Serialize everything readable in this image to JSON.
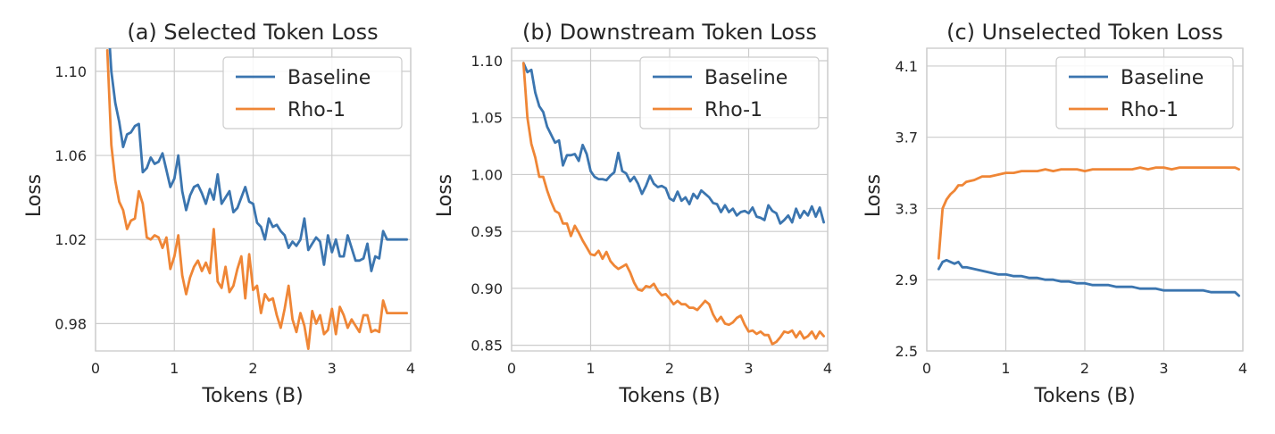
{
  "colors": {
    "baseline": "#3b75af",
    "rho1": "#ef8636"
  },
  "chart_data": [
    {
      "type": "line",
      "title": "(a) Selected Token Loss",
      "xlabel": "Tokens (B)",
      "ylabel": "Loss",
      "xlim": [
        0,
        4
      ],
      "ylim": [
        0.967,
        1.111
      ],
      "xticks": [
        0,
        1,
        2,
        3,
        4
      ],
      "xtick_labels": [
        "0",
        "1",
        "2",
        "3",
        "4"
      ],
      "yticks": [
        0.98,
        1.02,
        1.06,
        1.1
      ],
      "ytick_labels": [
        "0.98",
        "1.02",
        "1.06",
        "1.10"
      ],
      "grid": true,
      "legend": "top-right",
      "x": [
        0.15,
        0.2,
        0.25,
        0.3,
        0.35,
        0.4,
        0.45,
        0.5,
        0.55,
        0.6,
        0.65,
        0.7,
        0.75,
        0.8,
        0.85,
        0.9,
        0.95,
        1.0,
        1.05,
        1.1,
        1.15,
        1.2,
        1.25,
        1.3,
        1.35,
        1.4,
        1.45,
        1.5,
        1.55,
        1.6,
        1.65,
        1.7,
        1.75,
        1.8,
        1.85,
        1.9,
        1.95,
        2.0,
        2.05,
        2.1,
        2.15,
        2.2,
        2.25,
        2.3,
        2.35,
        2.4,
        2.45,
        2.5,
        2.55,
        2.6,
        2.65,
        2.7,
        2.75,
        2.8,
        2.85,
        2.9,
        2.95,
        3.0,
        3.05,
        3.1,
        3.15,
        3.2,
        3.25,
        3.3,
        3.35,
        3.4,
        3.45,
        3.5,
        3.55,
        3.6,
        3.65,
        3.7,
        3.75,
        3.8,
        3.85,
        3.9,
        3.95
      ],
      "series": [
        {
          "name": "Baseline",
          "values": [
            1.13,
            1.1,
            1.085,
            1.076,
            1.064,
            1.07,
            1.071,
            1.074,
            1.075,
            1.052,
            1.054,
            1.059,
            1.056,
            1.057,
            1.061,
            1.053,
            1.045,
            1.049,
            1.06,
            1.043,
            1.034,
            1.041,
            1.045,
            1.046,
            1.042,
            1.037,
            1.044,
            1.039,
            1.051,
            1.037,
            1.04,
            1.043,
            1.033,
            1.035,
            1.04,
            1.045,
            1.038,
            1.037,
            1.028,
            1.026,
            1.02,
            1.03,
            1.026,
            1.027,
            1.024,
            1.022,
            1.016,
            1.019,
            1.017,
            1.02,
            1.03,
            1.015,
            1.018,
            1.021,
            1.019,
            1.008,
            1.022,
            1.014,
            1.02,
            1.012,
            1.012,
            1.022,
            1.016,
            1.01,
            1.01,
            1.011,
            1.018,
            1.005,
            1.012,
            1.011,
            1.024,
            1.02,
            1.02,
            1.02,
            1.02,
            1.02,
            1.02
          ]
        },
        {
          "name": "Rho-1",
          "values": [
            1.11,
            1.065,
            1.048,
            1.038,
            1.034,
            1.025,
            1.029,
            1.03,
            1.043,
            1.037,
            1.021,
            1.02,
            1.022,
            1.021,
            1.016,
            1.021,
            1.006,
            1.012,
            1.022,
            1.003,
            0.994,
            1.002,
            1.007,
            1.01,
            1.005,
            1.009,
            1.004,
            1.025,
            1.0,
            0.997,
            1.007,
            0.995,
            0.998,
            1.006,
            1.012,
            0.992,
            1.013,
            0.996,
            0.998,
            0.985,
            0.994,
            0.991,
            0.992,
            0.984,
            0.978,
            0.987,
            0.998,
            0.982,
            0.976,
            0.985,
            0.979,
            0.968,
            0.986,
            0.98,
            0.984,
            0.975,
            0.977,
            0.987,
            0.975,
            0.988,
            0.984,
            0.978,
            0.982,
            0.979,
            0.976,
            0.984,
            0.984,
            0.976,
            0.977,
            0.976,
            0.991,
            0.985,
            0.985,
            0.985,
            0.985,
            0.985,
            0.985
          ]
        }
      ]
    },
    {
      "type": "line",
      "title": "(b) Downstream Token Loss",
      "xlabel": "Tokens (B)",
      "ylabel": "Loss",
      "xlim": [
        0,
        4
      ],
      "ylim": [
        0.845,
        1.111
      ],
      "xticks": [
        0,
        1,
        2,
        3,
        4
      ],
      "xtick_labels": [
        "0",
        "1",
        "2",
        "3",
        "4"
      ],
      "yticks": [
        0.85,
        0.9,
        0.95,
        1.0,
        1.05,
        1.1
      ],
      "ytick_labels": [
        "0.85",
        "0.90",
        "0.95",
        "1.00",
        "1.05",
        "1.10"
      ],
      "grid": true,
      "legend": "top-right",
      "x": [
        0.15,
        0.2,
        0.25,
        0.3,
        0.35,
        0.4,
        0.45,
        0.5,
        0.55,
        0.6,
        0.65,
        0.7,
        0.75,
        0.8,
        0.85,
        0.9,
        0.95,
        1.0,
        1.05,
        1.1,
        1.15,
        1.2,
        1.25,
        1.3,
        1.35,
        1.4,
        1.45,
        1.5,
        1.55,
        1.6,
        1.65,
        1.7,
        1.75,
        1.8,
        1.85,
        1.9,
        1.95,
        2.0,
        2.05,
        2.1,
        2.15,
        2.2,
        2.25,
        2.3,
        2.35,
        2.4,
        2.45,
        2.5,
        2.55,
        2.6,
        2.65,
        2.7,
        2.75,
        2.8,
        2.85,
        2.9,
        2.95,
        3.0,
        3.05,
        3.1,
        3.15,
        3.2,
        3.25,
        3.3,
        3.35,
        3.4,
        3.45,
        3.5,
        3.55,
        3.6,
        3.65,
        3.7,
        3.75,
        3.8,
        3.85,
        3.9,
        3.95
      ],
      "series": [
        {
          "name": "Baseline",
          "values": [
            1.098,
            1.09,
            1.092,
            1.072,
            1.06,
            1.055,
            1.042,
            1.035,
            1.028,
            1.03,
            1.008,
            1.017,
            1.017,
            1.018,
            1.012,
            1.026,
            1.018,
            1.003,
            0.998,
            0.996,
            0.996,
            0.995,
            0.999,
            1.002,
            1.019,
            1.003,
            1.001,
            0.994,
            0.998,
            0.992,
            0.983,
            0.99,
            0.999,
            0.992,
            0.989,
            0.99,
            0.988,
            0.979,
            0.977,
            0.985,
            0.977,
            0.98,
            0.974,
            0.983,
            0.979,
            0.986,
            0.983,
            0.98,
            0.975,
            0.974,
            0.967,
            0.973,
            0.967,
            0.97,
            0.964,
            0.967,
            0.968,
            0.966,
            0.971,
            0.963,
            0.962,
            0.96,
            0.973,
            0.968,
            0.966,
            0.957,
            0.96,
            0.964,
            0.958,
            0.97,
            0.962,
            0.968,
            0.964,
            0.972,
            0.963,
            0.971,
            0.958
          ]
        },
        {
          "name": "Rho-1",
          "values": [
            1.098,
            1.05,
            1.027,
            1.015,
            0.998,
            0.998,
            0.986,
            0.976,
            0.968,
            0.966,
            0.957,
            0.957,
            0.946,
            0.955,
            0.949,
            0.942,
            0.936,
            0.93,
            0.929,
            0.933,
            0.926,
            0.932,
            0.924,
            0.92,
            0.917,
            0.919,
            0.921,
            0.914,
            0.905,
            0.899,
            0.898,
            0.902,
            0.901,
            0.904,
            0.898,
            0.894,
            0.895,
            0.891,
            0.886,
            0.889,
            0.886,
            0.886,
            0.883,
            0.883,
            0.881,
            0.885,
            0.889,
            0.886,
            0.877,
            0.871,
            0.875,
            0.869,
            0.868,
            0.87,
            0.874,
            0.876,
            0.868,
            0.862,
            0.863,
            0.86,
            0.862,
            0.859,
            0.859,
            0.851,
            0.853,
            0.857,
            0.862,
            0.861,
            0.863,
            0.857,
            0.862,
            0.856,
            0.858,
            0.862,
            0.856,
            0.862,
            0.858
          ]
        }
      ]
    },
    {
      "type": "line",
      "title": "(c) Unselected Token Loss",
      "xlabel": "Tokens (B)",
      "ylabel": "Loss",
      "xlim": [
        0,
        4
      ],
      "ylim": [
        2.5,
        4.2
      ],
      "xticks": [
        0,
        1,
        2,
        3,
        4
      ],
      "xtick_labels": [
        "0",
        "1",
        "2",
        "3",
        "4"
      ],
      "yticks": [
        2.5,
        2.9,
        3.3,
        3.7,
        4.1
      ],
      "ytick_labels": [
        "2.5",
        "2.9",
        "3.3",
        "3.7",
        "4.1"
      ],
      "grid": true,
      "legend": "top-right",
      "x": [
        0.15,
        0.2,
        0.25,
        0.3,
        0.35,
        0.4,
        0.45,
        0.5,
        0.6,
        0.7,
        0.8,
        0.9,
        1.0,
        1.1,
        1.2,
        1.3,
        1.4,
        1.5,
        1.6,
        1.7,
        1.8,
        1.9,
        2.0,
        2.1,
        2.2,
        2.3,
        2.4,
        2.5,
        2.6,
        2.7,
        2.8,
        2.9,
        3.0,
        3.1,
        3.2,
        3.3,
        3.4,
        3.5,
        3.6,
        3.7,
        3.8,
        3.9,
        3.95
      ],
      "series": [
        {
          "name": "Baseline",
          "values": [
            2.96,
            3.0,
            3.01,
            3.0,
            2.99,
            3.0,
            2.97,
            2.97,
            2.96,
            2.95,
            2.94,
            2.93,
            2.93,
            2.92,
            2.92,
            2.91,
            2.91,
            2.9,
            2.9,
            2.89,
            2.89,
            2.88,
            2.88,
            2.87,
            2.87,
            2.87,
            2.86,
            2.86,
            2.86,
            2.85,
            2.85,
            2.85,
            2.84,
            2.84,
            2.84,
            2.84,
            2.84,
            2.84,
            2.83,
            2.83,
            2.83,
            2.83,
            2.81
          ]
        },
        {
          "name": "Rho-1",
          "values": [
            3.02,
            3.3,
            3.35,
            3.38,
            3.4,
            3.43,
            3.43,
            3.45,
            3.46,
            3.48,
            3.48,
            3.49,
            3.5,
            3.5,
            3.51,
            3.51,
            3.51,
            3.52,
            3.51,
            3.52,
            3.52,
            3.52,
            3.51,
            3.52,
            3.52,
            3.52,
            3.52,
            3.52,
            3.52,
            3.53,
            3.52,
            3.53,
            3.53,
            3.52,
            3.53,
            3.53,
            3.53,
            3.53,
            3.53,
            3.53,
            3.53,
            3.53,
            3.52
          ]
        }
      ]
    }
  ]
}
